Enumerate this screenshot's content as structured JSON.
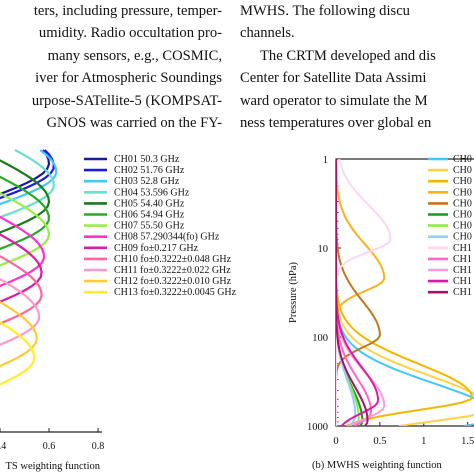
{
  "text": {
    "left_lines": [
      "ters, including pressure, temper-",
      "umidity. Radio occultation pro-",
      "many sensors, e.g., COSMIC,",
      "iver for Atmospheric Soundings",
      "urpose-SATellite-5 (KOMPSAT-",
      "GNOS was carried on the FY-"
    ],
    "right_lines": [
      "MWHS. The following discu",
      "channels.",
      "The CRTM developed and dis",
      "Center for Satellite Data Assimi",
      "ward operator to simulate the M",
      "ness temperatures over global en"
    ]
  },
  "chart_data": [
    {
      "type": "line",
      "title": "",
      "xlabel": "TS weighting function",
      "ylabel": "",
      "xlim": [
        0,
        0.8
      ],
      "x_ticks": [
        "0.4",
        "0.6",
        "0.8"
      ],
      "grid": false,
      "legend_position": "top-right",
      "series": [
        {
          "name": "CH01 50.3 GHz",
          "color": "#1a1aa0",
          "peak_x": 0.6,
          "peak_frac": 0.98
        },
        {
          "name": "CH02 51.76 GHz",
          "color": "#1a1ae0",
          "peak_x": 0.62,
          "peak_frac": 0.97
        },
        {
          "name": "CH03 52.8 GHz",
          "color": "#40c8ff",
          "peak_x": 0.63,
          "peak_frac": 0.95
        },
        {
          "name": "CH04 53.596 GHz",
          "color": "#66e0cc",
          "peak_x": 0.62,
          "peak_frac": 0.9
        },
        {
          "name": "CH05 54.40 GHz",
          "color": "#1a7a1a",
          "peak_x": 0.6,
          "peak_frac": 0.84
        },
        {
          "name": "CH06 54.94 GHz",
          "color": "#2aa82a",
          "peak_x": 0.6,
          "peak_frac": 0.78
        },
        {
          "name": "CH07 55.50 GHz",
          "color": "#99ee44",
          "peak_x": 0.6,
          "peak_frac": 0.72
        },
        {
          "name": "CH08 57.290344(fo) GHz",
          "color": "#ff33cc",
          "peak_x": 0.58,
          "peak_frac": 0.64
        },
        {
          "name": "CH09 fo±0.217 GHz",
          "color": "#dd1aa8",
          "peak_x": 0.57,
          "peak_frac": 0.58
        },
        {
          "name": "CH10 fo±0.3222±0.048 GHz",
          "color": "#ff6699",
          "peak_x": 0.57,
          "peak_frac": 0.5
        },
        {
          "name": "CH11 fo±0.3222±0.022 GHz",
          "color": "#ff99cc",
          "peak_x": 0.56,
          "peak_frac": 0.42
        },
        {
          "name": "CH12 fo±0.3222±0.010 GHz",
          "color": "#ffcc33",
          "peak_x": 0.55,
          "peak_frac": 0.34
        },
        {
          "name": "CH13 fo±0.3222±0.0045 GHz",
          "color": "#ffee22",
          "peak_x": 0.54,
          "peak_frac": 0.27
        }
      ]
    },
    {
      "type": "line",
      "title": "",
      "xlabel": "(b) MWHS weighting function",
      "ylabel": "Pressure (hPa)",
      "xlim": [
        0,
        1.8
      ],
      "ylim": [
        1000,
        1
      ],
      "y_scale": "log",
      "x_ticks": [
        "0",
        "0.5",
        "1",
        "1.5"
      ],
      "y_ticks": [
        "1",
        "10",
        "100",
        "1000"
      ],
      "grid": false,
      "legend_position": "top-right",
      "legend_labels": [
        "CH0",
        "CH0",
        "CH0",
        "CH0",
        "CH0",
        "CH0",
        "CH0",
        "CH0",
        "CH1",
        "CH1",
        "CH1",
        "CH1",
        "CH1"
      ],
      "series": [
        {
          "name": "CH0",
          "color": "#40c8ff",
          "peak_x": 1.85,
          "peak_p": 800
        },
        {
          "name": "CH0",
          "color": "#ffd24a",
          "peak_x": 1.75,
          "peak_p": 650
        },
        {
          "name": "CH0",
          "color": "#f0b800",
          "peak_x": 1.55,
          "peak_p": 480
        },
        {
          "name": "CH0",
          "color": "#ffb020",
          "peak_x": 0.55,
          "peak_p": 22
        },
        {
          "name": "CH0",
          "color": "#c07820",
          "peak_x": 0.5,
          "peak_p": 95
        },
        {
          "name": "CH0",
          "color": "#1a9a1a",
          "peak_x": 0.3,
          "peak_p": 880
        },
        {
          "name": "CH0",
          "color": "#88ee44",
          "peak_x": 0.26,
          "peak_p": 820
        },
        {
          "name": "CH0",
          "color": "#99ccff",
          "peak_x": 0.22,
          "peak_p": 760
        },
        {
          "name": "CH1",
          "color": "#ffd6f0",
          "peak_x": 0.62,
          "peak_p": 8
        },
        {
          "name": "CH1",
          "color": "#ff66cc",
          "peak_x": 0.4,
          "peak_p": 700
        },
        {
          "name": "CH1",
          "color": "#ff99dd",
          "peak_x": 0.55,
          "peak_p": 600
        },
        {
          "name": "CH1",
          "color": "#dd1aa8",
          "peak_x": 0.48,
          "peak_p": 520
        },
        {
          "name": "CH1",
          "color": "#aa1166",
          "peak_x": 0.36,
          "peak_p": 880
        }
      ]
    }
  ]
}
